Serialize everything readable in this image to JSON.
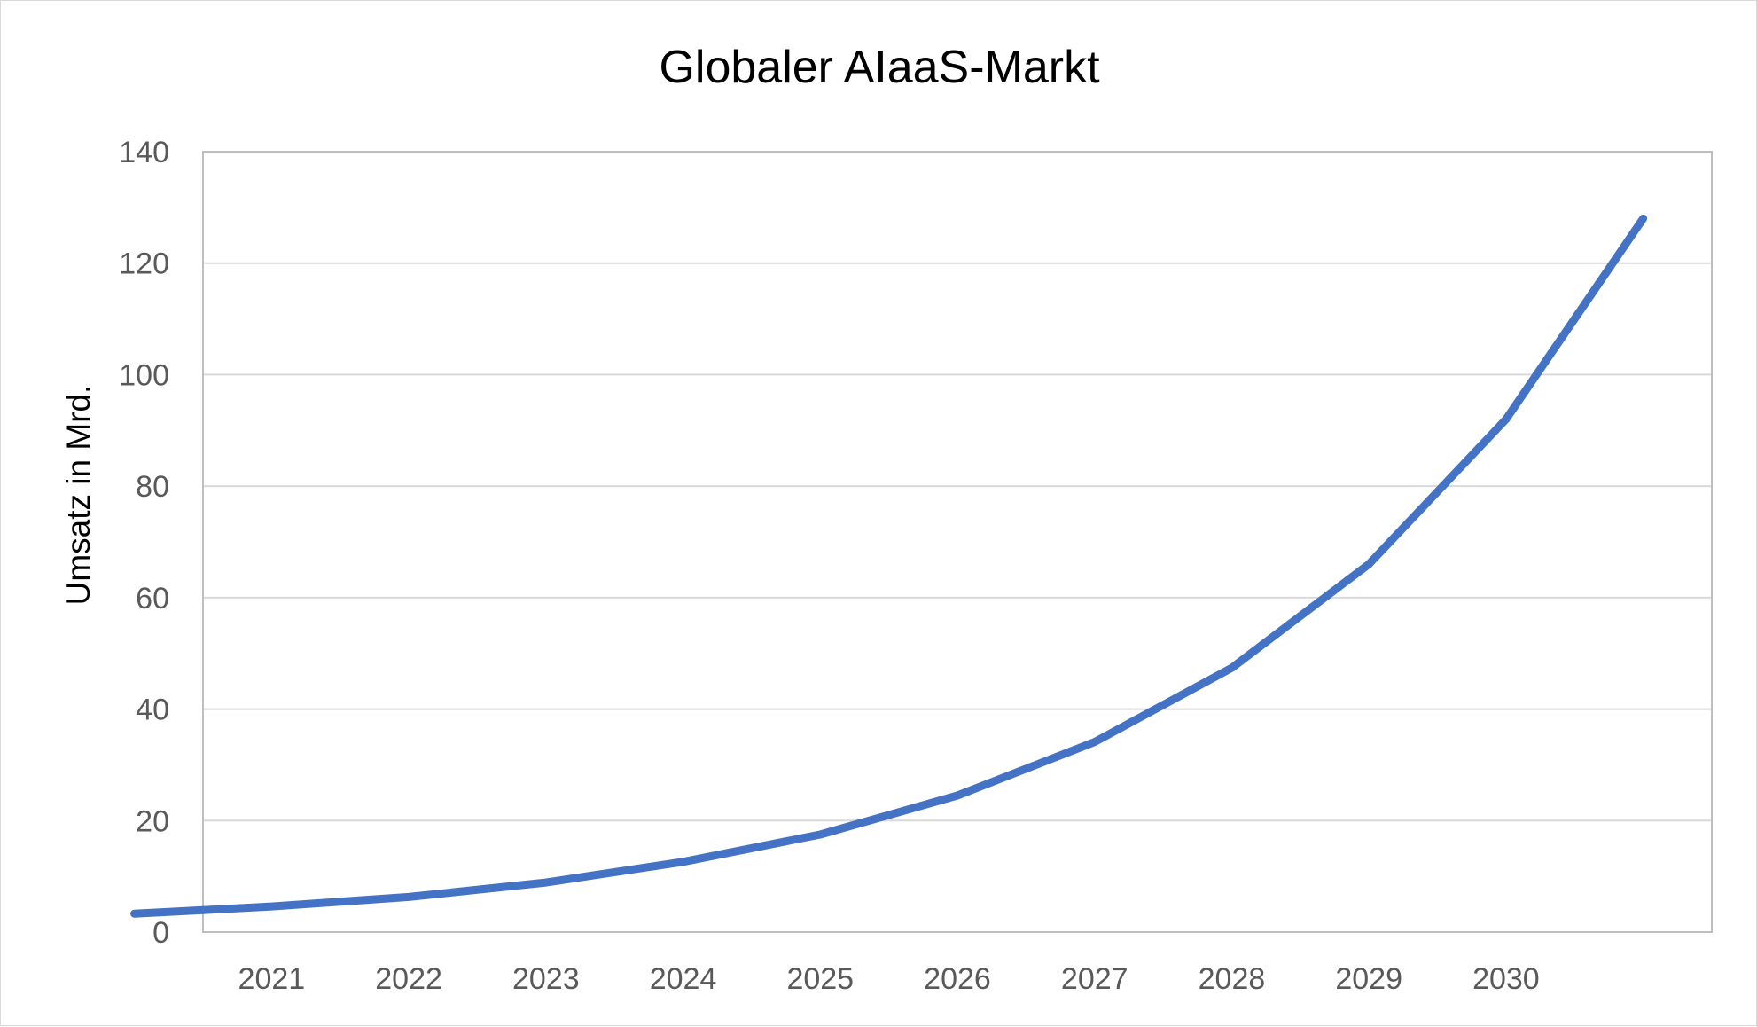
{
  "chart_data": {
    "type": "line",
    "title": "Globaler AIaaS-Markt",
    "xlabel": "",
    "ylabel": "Umsatz in Mrd.",
    "ylim": [
      0,
      140
    ],
    "yticks": [
      "0",
      "20",
      "40",
      "60",
      "80",
      "100",
      "120",
      "140"
    ],
    "x_tick_labels": [
      "2021",
      "2022",
      "2023",
      "2024",
      "2025",
      "2026",
      "2027",
      "2028",
      "2029",
      "2030"
    ],
    "x": [
      2020,
      2021,
      2022,
      2023,
      2024,
      2025,
      2026,
      2027,
      2028,
      2029,
      2030,
      2031
    ],
    "series": [
      {
        "values": [
          3.3,
          4.6,
          6.3,
          8.9,
          12.6,
          17.5,
          24.5,
          34.1,
          47.4,
          66.0,
          92.0,
          128.0
        ]
      }
    ],
    "grid": true,
    "legend": "none",
    "colors": {
      "line": "#4472c4",
      "grid": "#d9d9d9",
      "tick_text": "#595959",
      "title_text": "#000000"
    }
  }
}
